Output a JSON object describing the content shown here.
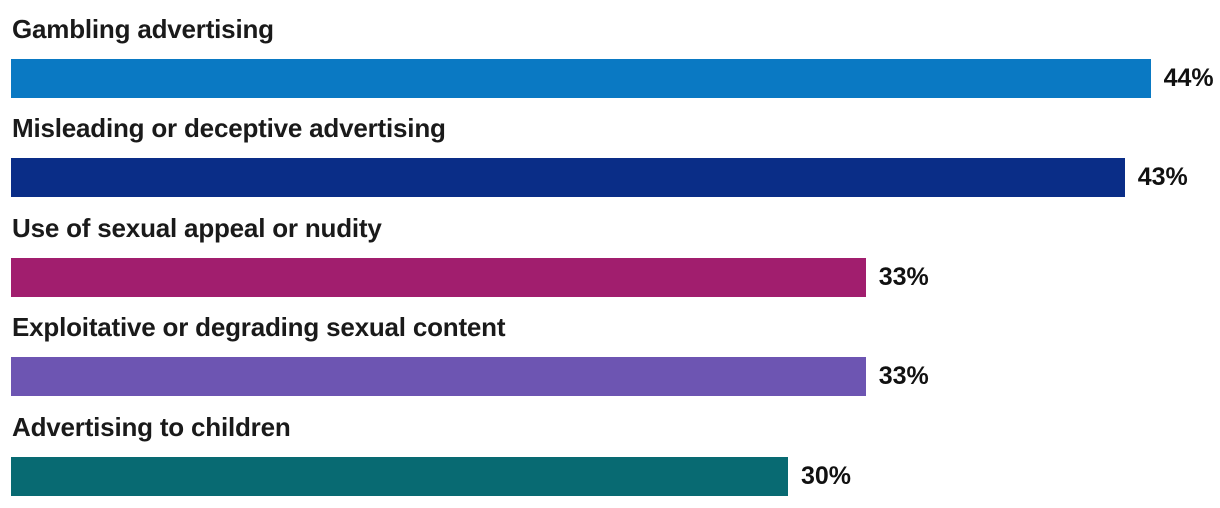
{
  "chart_data": {
    "type": "bar",
    "orientation": "horizontal",
    "title": "",
    "xlabel": "",
    "ylabel": "",
    "xlim": [
      0,
      47
    ],
    "grid": false,
    "legend": false,
    "value_label_position": "end-of-bar",
    "categories": [
      "Gambling advertising",
      "Misleading or deceptive advertising",
      "Use of sexual appeal or nudity",
      "Exploitative or degrading sexual content",
      "Advertising to children"
    ],
    "values": [
      44,
      43,
      33,
      33,
      30
    ],
    "value_labels": [
      "44%",
      "43%",
      "33%",
      "33%",
      "30%"
    ],
    "bar_colors": [
      "#0a79c3",
      "#0a2d87",
      "#a11e6e",
      "#6d55b2",
      "#086a72"
    ]
  },
  "style": {
    "background_color": "#ffffff",
    "label_text_color": "#1a1a1a",
    "value_text_color": "#111111"
  }
}
